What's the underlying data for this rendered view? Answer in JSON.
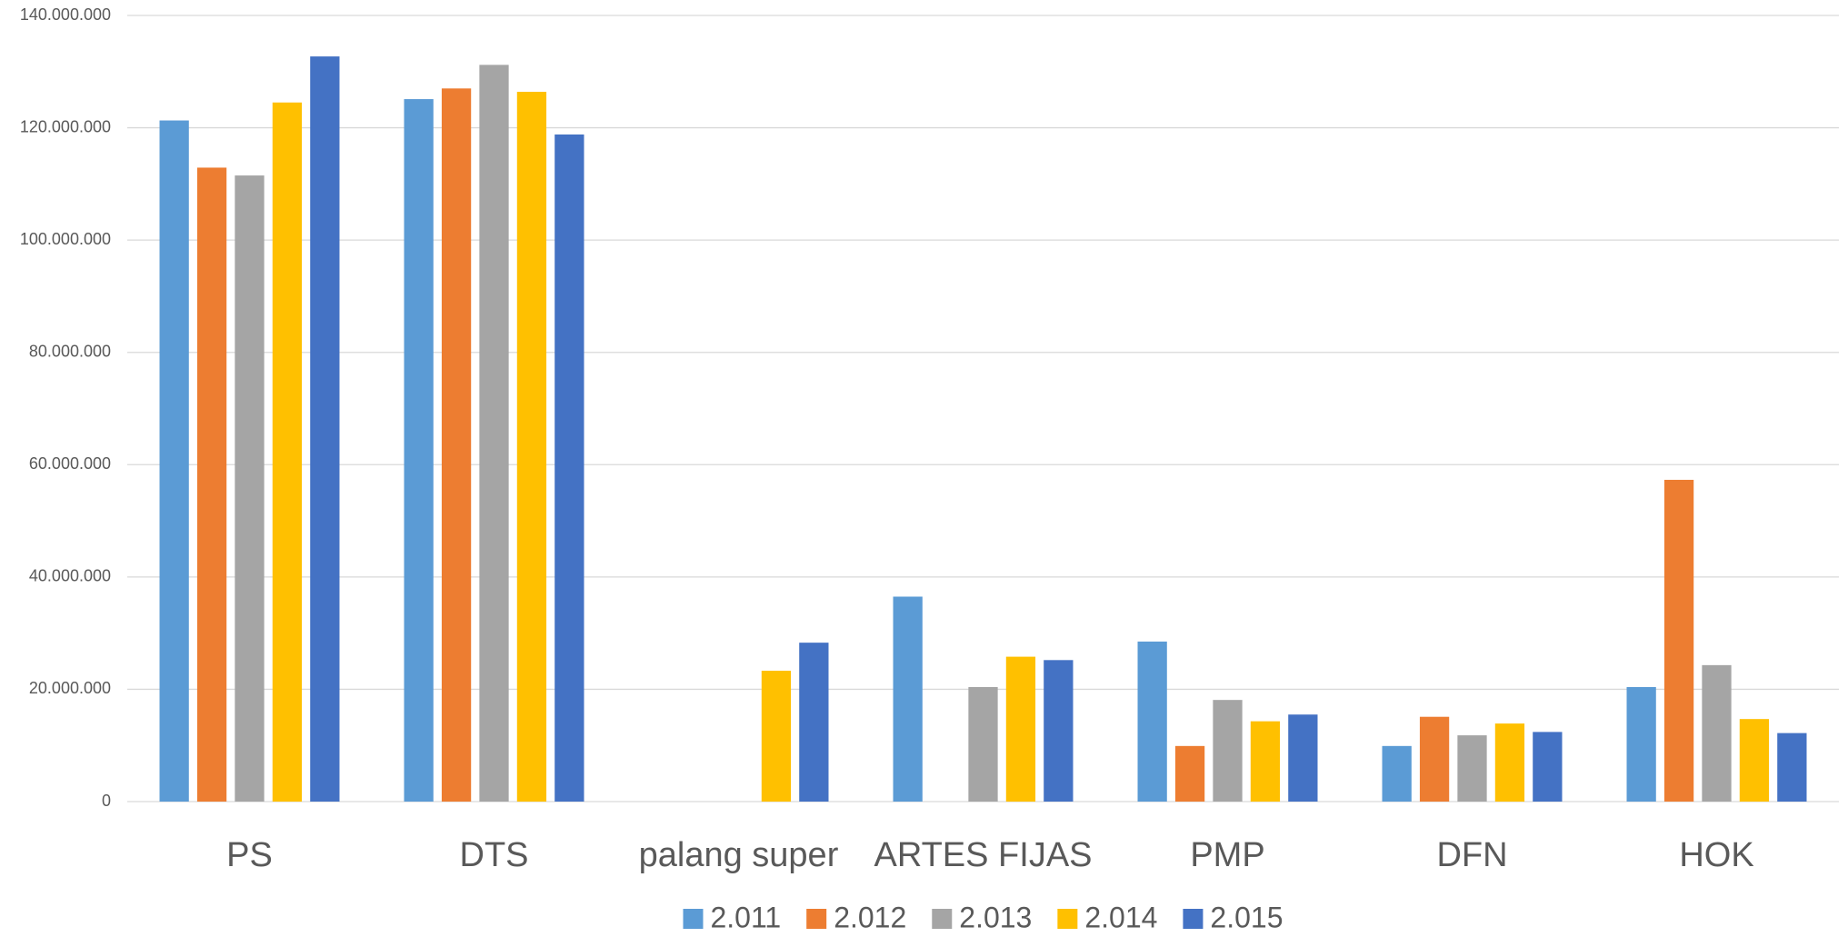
{
  "chart_data": {
    "type": "bar",
    "categories": [
      "PS",
      "DTS",
      "palang super",
      "ARTES FIJAS",
      "PMP",
      "DFN",
      "HOK"
    ],
    "series": [
      {
        "name": "2.011",
        "color": "#5b9bd5",
        "values": [
          121300000,
          125100000,
          null,
          36500000,
          28500000,
          9900000,
          20400000
        ]
      },
      {
        "name": "2.012",
        "color": "#ed7d31",
        "values": [
          112900000,
          127000000,
          null,
          null,
          9900000,
          15100000,
          57300000
        ]
      },
      {
        "name": "2.013",
        "color": "#a5a5a5",
        "values": [
          111500000,
          131200000,
          null,
          20400000,
          18100000,
          11800000,
          24300000
        ]
      },
      {
        "name": "2.014",
        "color": "#ffc000",
        "values": [
          124500000,
          126400000,
          23300000,
          25800000,
          14300000,
          13900000,
          14700000
        ]
      },
      {
        "name": "2.015",
        "color": "#4472c4",
        "values": [
          132700000,
          118800000,
          28300000,
          25200000,
          15500000,
          12400000,
          12200000
        ]
      }
    ],
    "ylim": [
      0,
      140000000
    ],
    "yticks": [
      0,
      {
        "value": 20000000,
        "label": "20.000.000"
      },
      {
        "value": 40000000,
        "label": "40.000.000"
      },
      {
        "value": 60000000,
        "label": "60.000.000"
      },
      {
        "value": 80000000,
        "label": "80.000.000"
      },
      {
        "value": 100000000,
        "label": "100.000.000"
      },
      {
        "value": 120000000,
        "label": "120.000.000"
      },
      {
        "value": 140000000,
        "label": "140.000.000"
      }
    ],
    "grid": true,
    "legend": "bottom"
  }
}
